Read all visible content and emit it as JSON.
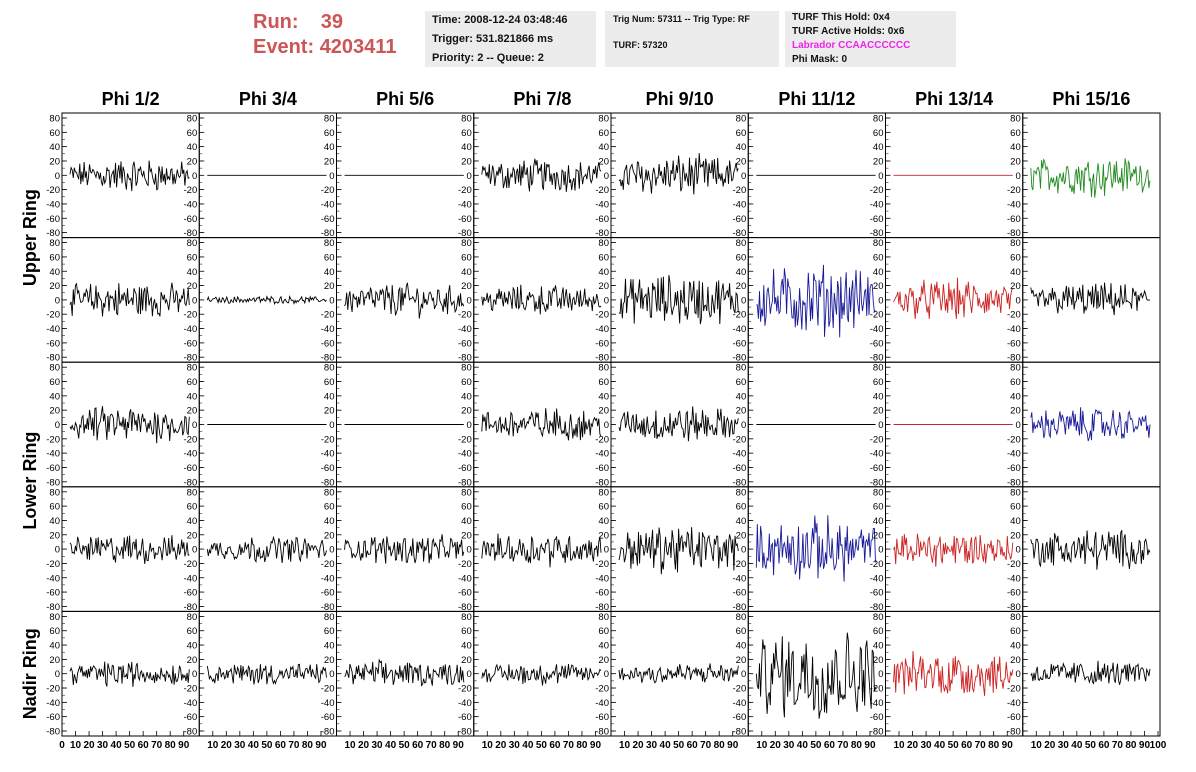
{
  "header": {
    "run_label": "Run:",
    "run_value": "39",
    "event_label": "Event:",
    "event_value": "4203411",
    "time": "Time: 2008-12-24 03:48:46",
    "trigger": "Trigger: 531.821866 ms",
    "priority": "Priority: 2 -- Queue: 2",
    "trig_num": "Trig Num: 57311 -- Trig Type: RF",
    "turf": "TURF: 57320",
    "turf_this_hold": "TURF This Hold: 0x4",
    "turf_active_holds": "TURF Active Holds: 0x6",
    "labrador": "Labrador CCAACCCCCC",
    "phi_mask": "Phi Mask: 0"
  },
  "colors": {
    "run_text": "#cc5555",
    "labrador_text": "#ee22ee",
    "trace_default": "#000000",
    "trace_green": "#228b22",
    "trace_blue": "#1a1a99",
    "trace_red": "#cc2222"
  },
  "chart_data": {
    "type": "line",
    "phi_titles": [
      "Phi 1/2",
      "Phi 3/4",
      "Phi 5/6",
      "Phi 7/8",
      "Phi 9/10",
      "Phi 11/12",
      "Phi 13/14",
      "Phi 15/16"
    ],
    "ring_labels": [
      "Upper Ring",
      "Lower Ring",
      "Nadir Ring"
    ],
    "ylim": [
      -80,
      80
    ],
    "yticks": [
      80,
      60,
      40,
      20,
      0,
      -20,
      -40,
      -60,
      -80
    ],
    "xlim": [
      0,
      100
    ],
    "xticks": [
      0,
      10,
      20,
      30,
      40,
      50,
      60,
      70,
      80,
      90,
      100
    ],
    "grid": false,
    "rows": [
      [
        {
          "amp": 18,
          "color": "black"
        },
        {
          "amp": 0,
          "color": "black"
        },
        {
          "amp": 0,
          "color": "black"
        },
        {
          "amp": 18,
          "color": "black"
        },
        {
          "amp": 22,
          "color": "black"
        },
        {
          "amp": 0,
          "color": "black"
        },
        {
          "amp": 0,
          "color": "red"
        },
        {
          "amp": 22,
          "color": "green"
        }
      ],
      [
        {
          "amp": 20,
          "color": "black"
        },
        {
          "amp": 4,
          "color": "black"
        },
        {
          "amp": 18,
          "color": "black"
        },
        {
          "amp": 16,
          "color": "black"
        },
        {
          "amp": 28,
          "color": "black"
        },
        {
          "amp": 38,
          "color": "blue"
        },
        {
          "amp": 22,
          "color": "red"
        },
        {
          "amp": 18,
          "color": "black"
        }
      ],
      [
        {
          "amp": 20,
          "color": "black"
        },
        {
          "amp": 0,
          "color": "black"
        },
        {
          "amp": 0,
          "color": "black"
        },
        {
          "amp": 18,
          "color": "black"
        },
        {
          "amp": 20,
          "color": "black"
        },
        {
          "amp": 0,
          "color": "black"
        },
        {
          "amp": 0,
          "color": "red"
        },
        {
          "amp": 18,
          "color": "blue"
        }
      ],
      [
        {
          "amp": 16,
          "color": "black"
        },
        {
          "amp": 14,
          "color": "black"
        },
        {
          "amp": 16,
          "color": "black"
        },
        {
          "amp": 18,
          "color": "black"
        },
        {
          "amp": 26,
          "color": "black"
        },
        {
          "amp": 34,
          "color": "blue"
        },
        {
          "amp": 20,
          "color": "red"
        },
        {
          "amp": 22,
          "color": "black"
        }
      ],
      [
        {
          "amp": 14,
          "color": "black"
        },
        {
          "amp": 12,
          "color": "black"
        },
        {
          "amp": 14,
          "color": "black"
        },
        {
          "amp": 12,
          "color": "black"
        },
        {
          "amp": 12,
          "color": "black"
        },
        {
          "amp": 50,
          "color": "black"
        },
        {
          "amp": 26,
          "color": "red"
        },
        {
          "amp": 14,
          "color": "black"
        }
      ]
    ]
  }
}
